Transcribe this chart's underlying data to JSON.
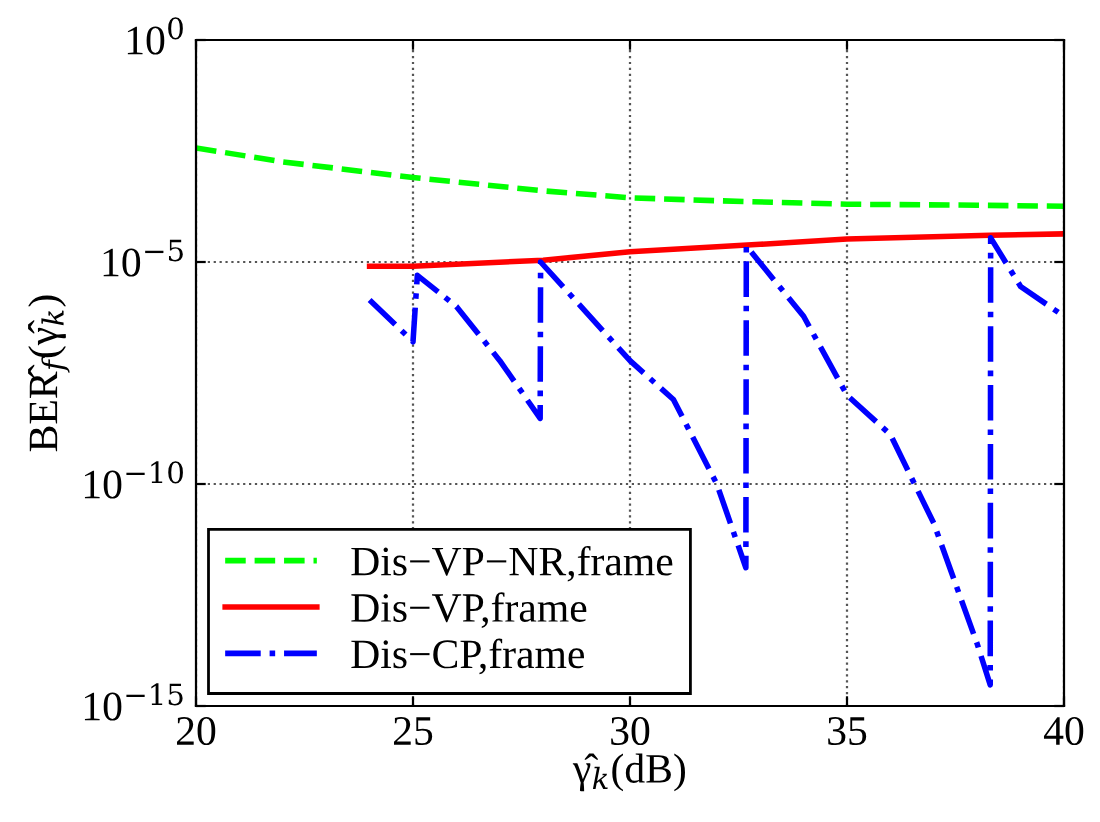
{
  "chart_data": {
    "type": "line",
    "xlabel": "γ̂$_{k}$(dB)",
    "ylabel": "BER̂$_{f}$(γ̂$_{k}$)",
    "log": "y",
    "grid": true,
    "legend": "bottom left",
    "xlim": [
      20,
      40
    ],
    "xticks": [
      20,
      25,
      30,
      35,
      40
    ],
    "ylim": [
      1e-15,
      1
    ],
    "yticks": [
      {
        "value": 1e-15,
        "label": "10$^{−15}$"
      },
      {
        "value": 1e-10,
        "label": "10$^{−10}$"
      },
      {
        "value": 1e-05,
        "label": "10$^{−5}$"
      },
      {
        "value": 1,
        "label": "10$^{0}$"
      }
    ],
    "series": [
      {
        "name": "Dis−VP−NR,frame",
        "color": "#00ff00",
        "line_style": "dashed",
        "x": [
          20,
          22,
          25,
          28,
          30,
          32,
          35,
          38,
          40
        ],
        "values": [
          0.0037,
          0.0018,
          0.0008,
          0.0004,
          0.00028,
          0.00024,
          0.0002,
          0.00019,
          0.00018
        ]
      },
      {
        "name": "Dis−VP,frame",
        "color": "#ff0000",
        "line_style": "solid",
        "x": [
          24,
          25,
          28,
          30,
          33,
          35,
          38.3,
          40
        ],
        "values": [
          8e-06,
          8e-06,
          1.1e-05,
          1.7e-05,
          2.5e-05,
          3.3e-05,
          4e-05,
          4.3e-05
        ]
      },
      {
        "name": "Dis−CP,frame",
        "color": "#0000ff",
        "line_style": "dashdot",
        "x": [
          24,
          25,
          25.1,
          26,
          27,
          27.93,
          27.94,
          30,
          31,
          32,
          32.67,
          32.68,
          34,
          35,
          36,
          37,
          38,
          38.3,
          38.31,
          39,
          40
        ],
        "values": [
          1.4e-06,
          1.6e-07,
          5e-06,
          1e-06,
          6e-08,
          3e-09,
          1e-05,
          6e-08,
          8e-09,
          1e-10,
          1.3e-12,
          2.3e-05,
          6e-07,
          1e-08,
          1.3e-09,
          1.3e-11,
          2.5e-14,
          3e-15,
          3.5e-05,
          2.8e-06,
          6e-07
        ]
      }
    ]
  }
}
